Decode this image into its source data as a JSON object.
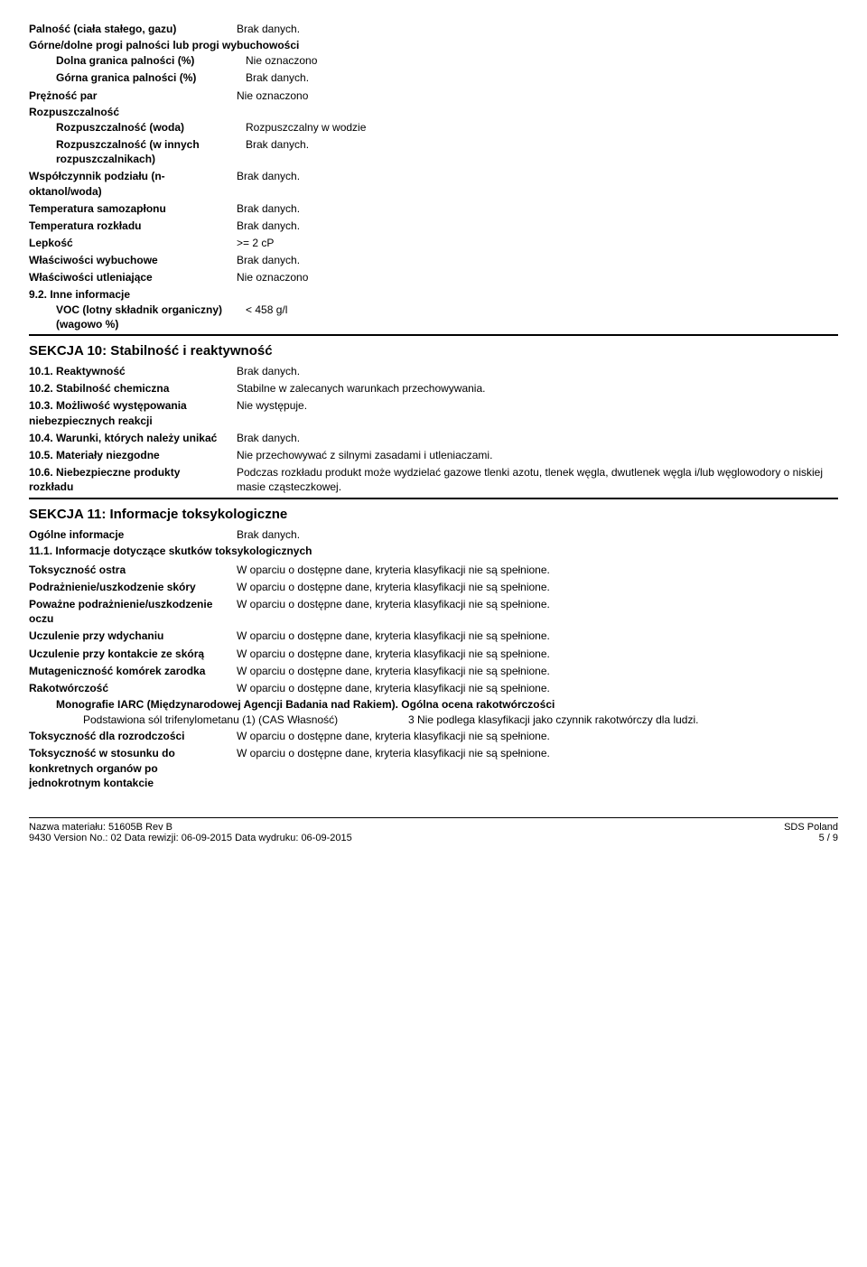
{
  "s9": {
    "flammability": {
      "label": "Palność (ciała stałego, gazu)",
      "value": "Brak danych."
    },
    "limits_heading": "Górne/dolne progi palności lub progi wybuchowości",
    "lower_limit": {
      "label": "Dolna granica palności (%)",
      "value": "Nie oznaczono"
    },
    "upper_limit": {
      "label": "Górna granica palności (%)",
      "value": "Brak danych."
    },
    "vapor_pressure": {
      "label": "Prężność par",
      "value": "Nie oznaczono"
    },
    "solubility_heading": "Rozpuszczalność",
    "solubility_water": {
      "label": "Rozpuszczalność (woda)",
      "value": "Rozpuszczalny w wodzie"
    },
    "solubility_other": {
      "label": "Rozpuszczalność (w innych rozpuszczalnikach)",
      "value": "Brak danych."
    },
    "partition": {
      "label": "Współczynnik podziału (n-oktanol/woda)",
      "value": "Brak danych."
    },
    "autoignition": {
      "label": "Temperatura samozapłonu",
      "value": "Brak danych."
    },
    "decomp_temp": {
      "label": "Temperatura rozkładu",
      "value": "Brak danych."
    },
    "viscosity": {
      "label": "Lepkość",
      "value": ">= 2 cP"
    },
    "explosive": {
      "label": "Właściwości wybuchowe",
      "value": "Brak danych."
    },
    "oxidizing": {
      "label": "Właściwości utleniające",
      "value": "Nie oznaczono"
    },
    "other_heading": "9.2. Inne informacje",
    "voc": {
      "label": "VOC (lotny składnik organiczny) (wagowo %)",
      "value": "< 458 g/l"
    }
  },
  "s10": {
    "title": "SEKCJA 10: Stabilność i reaktywność",
    "r1": {
      "label": "10.1. Reaktywność",
      "value": "Brak danych."
    },
    "r2": {
      "label": "10.2. Stabilność chemiczna",
      "value": "Stabilne w zalecanych warunkach przechowywania."
    },
    "r3": {
      "label": "10.3. Możliwość występowania niebezpiecznych reakcji",
      "value": "Nie występuje."
    },
    "r4": {
      "label": "10.4. Warunki, których należy unikać",
      "value": "Brak danych."
    },
    "r5": {
      "label": "10.5. Materiały niezgodne",
      "value": "Nie przechowywać z silnymi zasadami i utleniaczami."
    },
    "r6": {
      "label": "10.6. Niebezpieczne produkty rozkładu",
      "value": "Podczas rozkładu produkt może wydzielać gazowe tlenki azotu, tlenek węgla, dwutlenek węgla i/lub węglowodory o niskiej masie cząsteczkowej."
    }
  },
  "s11": {
    "title": "SEKCJA 11: Informacje toksykologiczne",
    "general": {
      "label": "Ogólne informacje",
      "value": "Brak danych."
    },
    "sub_heading": "11.1. Informacje dotyczące skutków toksykologicznych",
    "std_value": "W oparciu o dostępne dane, kryteria klasyfikacji nie są spełnione.",
    "acute": {
      "label": "Toksyczność ostra"
    },
    "skin": {
      "label": "Podrażnienie/uszkodzenie skóry"
    },
    "eye": {
      "label": "Poważne podrażnienie/uszkodzenie oczu"
    },
    "resp_sens": {
      "label": "Uczulenie przy wdychaniu"
    },
    "skin_sens": {
      "label": "Uczulenie przy kontakcie ze skórą"
    },
    "mutagen": {
      "label": "Mutageniczność komórek zarodka"
    },
    "carcin": {
      "label": "Rakotwórczość"
    },
    "iarc_heading": "Monografie IARC (Międzynarodowej Agencji Badania nad Rakiem). Ogólna ocena rakotwórczości",
    "iarc_row": {
      "label": "Podstawiona sól trifenylometanu (1) (CAS Własność)",
      "value": "3 Nie podlega klasyfikacji jako czynnik rakotwórczy dla ludzi."
    },
    "repro": {
      "label": "Toksyczność dla rozrodczości"
    },
    "stot_single": {
      "label": "Toksyczność w stosunku do konkretnych organów po jednokrotnym kontakcie"
    }
  },
  "footer": {
    "material": "Nazwa materiału: 51605B Rev B",
    "line2": "9430    Version No.: 02    Data rewizji: 06-09-2015    Data wydruku: 06-09-2015",
    "sds": "SDS Poland",
    "page": "5 / 9"
  }
}
